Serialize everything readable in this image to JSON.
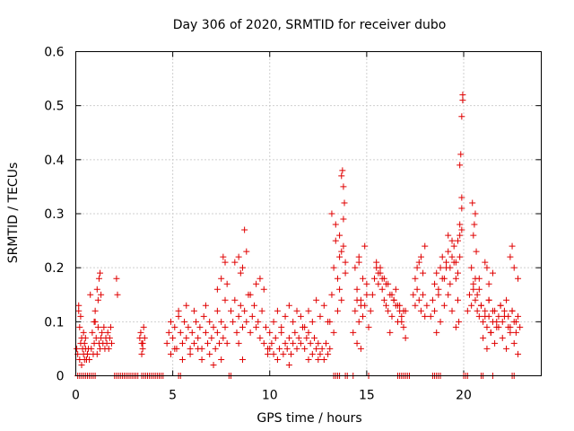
{
  "chart_data": {
    "type": "scatter",
    "title": "Day 306 of 2020, SRMTID for receiver dubo",
    "xlabel": "GPS time / hours",
    "ylabel": "SRMTID / TECUs",
    "xlim": [
      0,
      24
    ],
    "ylim": [
      0,
      0.6
    ],
    "xticks": [
      0,
      5,
      10,
      15,
      20
    ],
    "xtick_labels": [
      "0",
      "5",
      "10",
      "15",
      "20"
    ],
    "yticks": [
      0,
      0.1,
      0.2,
      0.3,
      0.4,
      0.5,
      0.6
    ],
    "ytick_labels": [
      "0",
      "0.1",
      "0.2",
      "0.3",
      "0.4",
      "0.5",
      "0.6"
    ],
    "grid": true,
    "series": [
      {
        "name": "SRMTID",
        "color": "#e00000",
        "marker": "plus",
        "x": [
          0.05,
          0.1,
          0.15,
          0.2,
          0.25,
          0.3,
          0.35,
          0.4,
          0.45,
          0.5,
          0.55,
          0.6,
          0.65,
          0.7,
          0.15,
          0.2,
          0.25,
          0.3,
          0.4,
          0.45,
          0.5,
          0.55,
          0.6,
          0.75,
          0.8,
          0.85,
          0.9,
          0.95,
          1.0,
          1.05,
          1.1,
          1.15,
          1.2,
          1.25,
          1.3,
          1.35,
          1.4,
          1.45,
          1.5,
          1.55,
          1.6,
          1.65,
          1.7,
          1.75,
          1.8,
          1.85,
          1.1,
          1.15,
          1.2,
          1.25,
          1.3,
          0.95,
          1.0,
          2.1,
          2.15,
          3.3,
          3.35,
          3.4,
          3.45,
          3.5,
          3.55,
          3.4,
          3.45,
          4.7,
          4.8,
          4.9,
          5.0,
          5.1,
          5.2,
          5.3,
          5.4,
          5.5,
          5.6,
          5.7,
          5.8,
          5.9,
          6.0,
          6.1,
          6.2,
          6.3,
          6.4,
          6.5,
          6.6,
          6.7,
          6.8,
          6.9,
          7.0,
          7.1,
          7.2,
          7.3,
          7.4,
          7.5,
          7.6,
          7.7,
          7.8,
          4.9,
          5.1,
          5.3,
          5.5,
          5.7,
          5.9,
          6.1,
          6.3,
          6.5,
          6.7,
          6.9,
          7.1,
          7.3,
          7.5,
          7.7,
          7.3,
          7.5,
          7.7,
          7.6,
          7.8,
          8.0,
          8.1,
          8.2,
          8.3,
          8.4,
          8.5,
          8.6,
          8.7,
          8.8,
          8.9,
          9.0,
          9.1,
          9.2,
          9.3,
          9.4,
          9.5,
          9.6,
          9.7,
          9.8,
          9.9,
          10.0,
          8.2,
          8.4,
          8.5,
          8.6,
          8.8,
          9.0,
          9.3,
          9.5,
          9.7,
          8.7,
          8.6,
          8.4,
          9.9,
          10.0,
          10.1,
          10.2,
          10.3,
          10.4,
          10.5,
          10.6,
          10.7,
          10.8,
          10.9,
          11.0,
          11.1,
          11.2,
          11.3,
          11.4,
          11.5,
          11.6,
          11.7,
          11.8,
          11.9,
          12.0,
          12.1,
          12.2,
          12.3,
          12.4,
          12.5,
          12.6,
          12.7,
          12.8,
          12.9,
          13.0,
          13.1,
          10.2,
          10.4,
          10.6,
          10.8,
          11.0,
          11.2,
          11.4,
          11.6,
          11.8,
          12.0,
          12.2,
          12.4,
          12.6,
          12.8,
          13.0,
          11.0,
          12.0,
          12.5,
          13.1,
          13.2,
          13.3,
          13.4,
          13.5,
          13.6,
          13.7,
          13.8,
          13.9,
          13.2,
          13.4,
          13.6,
          13.7,
          13.75,
          13.8,
          13.85,
          13.8,
          13.7,
          13.5,
          13.3,
          13.6,
          13.9,
          14.3,
          14.4,
          14.5,
          14.6,
          14.7,
          14.8,
          14.9,
          15.0,
          15.1,
          15.2,
          14.4,
          14.6,
          14.8,
          15.0,
          14.5,
          14.7,
          14.9,
          14.6,
          14.5,
          14.7,
          15.3,
          15.4,
          15.5,
          15.6,
          15.7,
          15.8,
          15.9,
          16.0,
          16.1,
          16.2,
          16.3,
          16.4,
          16.5,
          16.6,
          16.7,
          16.8,
          16.9,
          17.0,
          15.5,
          15.7,
          15.9,
          16.1,
          16.3,
          16.5,
          16.7,
          16.9,
          15.6,
          15.8,
          16.0,
          16.4,
          16.6,
          16.8,
          17.0,
          16.2,
          17.4,
          17.5,
          17.6,
          17.7,
          17.8,
          17.9,
          18.0,
          18.1,
          17.6,
          17.8,
          18.0,
          17.5,
          17.7,
          17.9,
          18.3,
          18.4,
          18.5,
          18.6,
          18.7,
          18.8,
          18.9,
          19.0,
          19.1,
          19.2,
          19.3,
          19.4,
          19.5,
          19.6,
          19.7,
          19.8,
          18.5,
          18.7,
          18.9,
          19.1,
          19.3,
          19.5,
          19.7,
          18.6,
          18.8,
          19.0,
          19.2,
          19.4,
          19.6,
          19.8,
          19.9,
          19.9,
          19.95,
          19.95,
          19.9,
          19.85,
          19.8,
          19.7,
          19.75,
          19.6,
          19.9,
          19.8,
          19.4,
          19.2,
          20.2,
          20.3,
          20.4,
          20.5,
          20.6,
          20.7,
          20.8,
          20.9,
          21.0,
          21.1,
          21.2,
          21.3,
          21.4,
          21.5,
          21.6,
          21.7,
          21.8,
          21.9,
          22.0,
          22.1,
          22.2,
          22.3,
          22.4,
          22.5,
          22.6,
          22.7,
          22.8,
          22.9,
          20.4,
          20.6,
          20.8,
          21.0,
          21.2,
          21.4,
          21.6,
          21.8,
          22.0,
          22.2,
          22.4,
          22.6,
          22.8,
          20.5,
          20.7,
          20.9,
          21.1,
          21.3,
          21.5,
          21.7,
          21.9,
          22.1,
          22.3,
          22.5,
          22.7,
          20.5,
          20.55,
          20.6,
          20.45,
          20.65,
          20.8,
          21.3,
          21.5,
          22.4,
          22.5,
          22.6,
          22.8,
          21.1,
          21.2,
          21.3
        ],
        "y": [
          0.05,
          0.04,
          0.12,
          0.03,
          0.06,
          0.02,
          0.05,
          0.04,
          0.03,
          0.07,
          0.03,
          0.04,
          0.05,
          0.03,
          0.13,
          0.09,
          0.11,
          0.07,
          0.08,
          0.06,
          0.05,
          0.03,
          0.04,
          0.15,
          0.05,
          0.08,
          0.04,
          0.06,
          0.1,
          0.07,
          0.04,
          0.09,
          0.06,
          0.05,
          0.07,
          0.08,
          0.06,
          0.09,
          0.05,
          0.07,
          0.06,
          0.08,
          0.05,
          0.07,
          0.09,
          0.06,
          0.16,
          0.14,
          0.18,
          0.19,
          0.15,
          0.1,
          0.12,
          0.18,
          0.15,
          0.07,
          0.08,
          0.06,
          0.05,
          0.09,
          0.07,
          0.04,
          0.06,
          0.06,
          0.08,
          0.1,
          0.07,
          0.09,
          0.05,
          0.11,
          0.08,
          0.06,
          0.1,
          0.07,
          0.09,
          0.05,
          0.08,
          0.06,
          0.1,
          0.07,
          0.09,
          0.05,
          0.11,
          0.08,
          0.06,
          0.1,
          0.07,
          0.09,
          0.05,
          0.08,
          0.06,
          0.1,
          0.07,
          0.09,
          0.06,
          0.04,
          0.05,
          0.12,
          0.03,
          0.13,
          0.04,
          0.12,
          0.05,
          0.03,
          0.13,
          0.04,
          0.02,
          0.12,
          0.03,
          0.14,
          0.16,
          0.18,
          0.21,
          0.22,
          0.17,
          0.12,
          0.1,
          0.14,
          0.08,
          0.11,
          0.13,
          0.09,
          0.12,
          0.1,
          0.15,
          0.08,
          0.11,
          0.13,
          0.09,
          0.1,
          0.07,
          0.12,
          0.06,
          0.09,
          0.05,
          0.08,
          0.21,
          0.22,
          0.19,
          0.2,
          0.23,
          0.15,
          0.17,
          0.18,
          0.16,
          0.27,
          0.03,
          0.06,
          0.04,
          0.05,
          0.06,
          0.04,
          0.07,
          0.03,
          0.05,
          0.08,
          0.04,
          0.06,
          0.05,
          0.07,
          0.04,
          0.06,
          0.08,
          0.05,
          0.07,
          0.06,
          0.09,
          0.05,
          0.07,
          0.08,
          0.06,
          0.04,
          0.07,
          0.05,
          0.06,
          0.04,
          0.05,
          0.03,
          0.06,
          0.04,
          0.05,
          0.1,
          0.12,
          0.09,
          0.11,
          0.13,
          0.1,
          0.12,
          0.11,
          0.09,
          0.12,
          0.1,
          0.14,
          0.11,
          0.13,
          0.1,
          0.02,
          0.03,
          0.03,
          0.1,
          0.15,
          0.2,
          0.25,
          0.18,
          0.22,
          0.14,
          0.24,
          0.19,
          0.3,
          0.28,
          0.26,
          0.37,
          0.38,
          0.35,
          0.32,
          0.29,
          0.23,
          0.12,
          0.08,
          0.16,
          0.21,
          0.08,
          0.12,
          0.16,
          0.1,
          0.14,
          0.11,
          0.13,
          0.15,
          0.09,
          0.12,
          0.2,
          0.22,
          0.18,
          0.17,
          0.06,
          0.05,
          0.24,
          0.21,
          0.14,
          0.13,
          0.15,
          0.18,
          0.2,
          0.17,
          0.19,
          0.16,
          0.14,
          0.13,
          0.12,
          0.15,
          0.11,
          0.14,
          0.13,
          0.1,
          0.12,
          0.11,
          0.09,
          0.12,
          0.21,
          0.2,
          0.18,
          0.17,
          0.15,
          0.16,
          0.13,
          0.12,
          0.19,
          0.18,
          0.17,
          0.14,
          0.13,
          0.1,
          0.07,
          0.08,
          0.15,
          0.13,
          0.16,
          0.14,
          0.12,
          0.15,
          0.11,
          0.13,
          0.2,
          0.22,
          0.24,
          0.18,
          0.21,
          0.19,
          0.11,
          0.14,
          0.17,
          0.19,
          0.16,
          0.2,
          0.22,
          0.18,
          0.21,
          0.23,
          0.2,
          0.22,
          0.24,
          0.21,
          0.25,
          0.22,
          0.12,
          0.15,
          0.18,
          0.2,
          0.17,
          0.21,
          0.19,
          0.08,
          0.1,
          0.13,
          0.15,
          0.12,
          0.18,
          0.26,
          0.27,
          0.33,
          0.51,
          0.52,
          0.48,
          0.41,
          0.39,
          0.14,
          0.1,
          0.09,
          0.31,
          0.28,
          0.25,
          0.26,
          0.12,
          0.15,
          0.13,
          0.16,
          0.14,
          0.12,
          0.11,
          0.13,
          0.1,
          0.12,
          0.09,
          0.11,
          0.08,
          0.1,
          0.12,
          0.09,
          0.11,
          0.13,
          0.1,
          0.12,
          0.14,
          0.11,
          0.09,
          0.12,
          0.1,
          0.08,
          0.11,
          0.09,
          0.2,
          0.18,
          0.16,
          0.07,
          0.05,
          0.08,
          0.06,
          0.09,
          0.07,
          0.05,
          0.08,
          0.06,
          0.04,
          0.17,
          0.15,
          0.13,
          0.11,
          0.14,
          0.12,
          0.1,
          0.13,
          0.11,
          0.09,
          0.12,
          0.1,
          0.26,
          0.28,
          0.3,
          0.32,
          0.23,
          0.18,
          0.17,
          0.19,
          0.22,
          0.24,
          0.2,
          0.18,
          0.21,
          0.2,
          0.14
        ],
        "zeros_x": [
          0.1,
          0.2,
          0.3,
          0.4,
          0.5,
          0.6,
          0.7,
          0.8,
          0.9,
          1.0,
          2.0,
          2.1,
          2.2,
          2.3,
          2.4,
          2.5,
          2.6,
          2.7,
          2.8,
          2.9,
          3.0,
          3.1,
          3.2,
          3.4,
          3.5,
          3.6,
          3.7,
          3.8,
          3.9,
          4.0,
          4.1,
          4.2,
          4.3,
          4.4,
          4.5,
          5.3,
          5.4,
          7.9,
          8.0,
          13.3,
          13.4,
          13.5,
          13.6,
          13.9,
          14.0,
          14.3,
          15.1,
          16.6,
          16.7,
          16.8,
          16.9,
          17.0,
          17.1,
          17.2,
          18.4,
          18.5,
          18.6,
          18.7,
          18.8,
          20.0,
          20.1,
          20.2,
          20.9,
          21.0,
          21.5,
          22.5,
          22.6
        ]
      }
    ]
  }
}
